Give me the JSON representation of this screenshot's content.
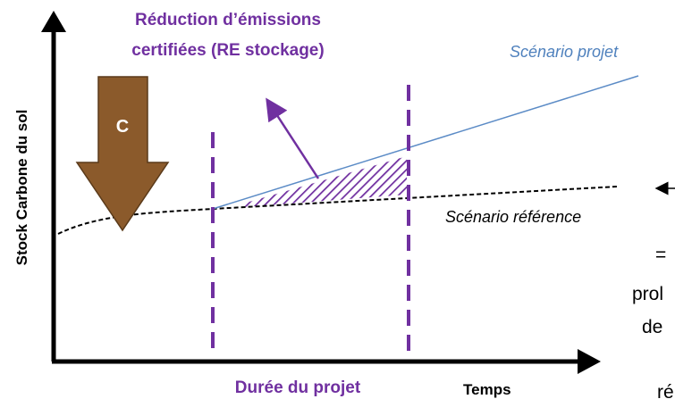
{
  "y_axis_label": "Stock Carbone du sol",
  "annotation": {
    "line1": "Réduction d’émissions",
    "line2": "certifiées (RE stockage)"
  },
  "project_scenario": "Scénario projet",
  "reference_scenario": "Scénario référence",
  "arrow_letter": "C",
  "project_duration": "Durée du projet",
  "x_axis_label": "Temps",
  "side_text": [
    "=",
    "prol",
    "de",
    "ré"
  ]
}
